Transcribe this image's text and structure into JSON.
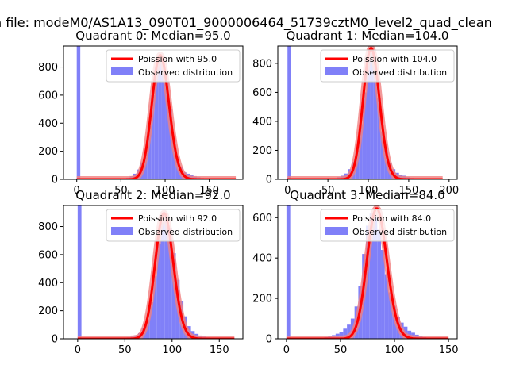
{
  "suptitle": "n file: modeM0/AS1A13_090T01_9000006464_51739cztM0_level2_quad_clean",
  "colors": {
    "observed": "#8080f8",
    "poisson": "#ff0000",
    "poisson_band": "#f08080",
    "axes": "#000000"
  },
  "chart_data": [
    {
      "type": "bar",
      "title": "Quadrant 0: Median=95.0",
      "legend": [
        "Poission with 95.0",
        "Observed distribution"
      ],
      "legend_position": "top-right",
      "xlim": [
        -15,
        188
      ],
      "ylim": [
        0,
        950
      ],
      "xticks": [
        0,
        50,
        100,
        150
      ],
      "xtick_labels": [
        "0",
        "50",
        "100",
        "150"
      ],
      "yticks": [
        0,
        200,
        400,
        600,
        800
      ],
      "ytick_labels": [
        "0",
        "200",
        "400",
        "600",
        "800"
      ],
      "median": 95,
      "bin_width": 4,
      "histogram": {
        "bins": [
          0,
          40,
          44,
          48,
          52,
          56,
          60,
          64,
          68,
          72,
          76,
          80,
          84,
          88,
          92,
          96,
          100,
          104,
          108,
          112,
          116,
          120,
          124,
          128,
          132,
          136,
          140,
          144,
          148,
          152,
          156
        ],
        "counts": [
          950,
          2,
          3,
          5,
          8,
          12,
          22,
          40,
          70,
          120,
          210,
          380,
          600,
          800,
          850,
          830,
          700,
          500,
          290,
          160,
          90,
          50,
          40,
          28,
          20,
          15,
          10,
          6,
          4,
          2,
          1
        ]
      },
      "poisson_x_range": [
        0,
        180
      ]
    },
    {
      "type": "bar",
      "title": "Quadrant 1: Median=104.0",
      "legend": [
        "Poission with 104.0",
        "Observed distribution"
      ],
      "legend_position": "top-right",
      "xlim": [
        -12,
        210
      ],
      "ylim": [
        0,
        920
      ],
      "xticks": [
        0,
        50,
        100,
        150,
        200
      ],
      "xtick_labels": [
        "0",
        "50",
        "100",
        "150",
        "200"
      ],
      "yticks": [
        0,
        200,
        400,
        600,
        800
      ],
      "ytick_labels": [
        "0",
        "200",
        "400",
        "600",
        "800"
      ],
      "median": 104,
      "bin_width": 4.5,
      "histogram": {
        "bins": [
          0,
          48,
          52.5,
          57,
          61.5,
          66,
          70.5,
          75,
          79.5,
          84,
          88.5,
          93,
          97.5,
          102,
          106.5,
          111,
          115.5,
          120,
          124.5,
          129,
          133.5,
          138,
          142.5,
          147,
          151.5,
          156,
          160.5
        ],
        "counts": [
          920,
          3,
          5,
          8,
          15,
          25,
          40,
          70,
          120,
          200,
          380,
          600,
          840,
          870,
          780,
          560,
          330,
          200,
          110,
          70,
          45,
          30,
          25,
          15,
          10,
          5,
          3
        ]
      },
      "poisson_x_range": [
        0,
        192
      ]
    },
    {
      "type": "bar",
      "title": "Quadrant 2: Median=92.0",
      "legend": [
        "Poission with 92.0",
        "Observed distribution"
      ],
      "legend_position": "top-right",
      "xlim": [
        -15,
        175
      ],
      "ylim": [
        0,
        950
      ],
      "xticks": [
        0,
        50,
        100,
        150
      ],
      "xtick_labels": [
        "0",
        "50",
        "100",
        "150"
      ],
      "yticks": [
        0,
        200,
        400,
        600,
        800
      ],
      "ytick_labels": [
        "0",
        "200",
        "400",
        "600",
        "800"
      ],
      "median": 92,
      "bin_width": 4,
      "histogram": {
        "bins": [
          0,
          44,
          48,
          52,
          56,
          60,
          64,
          68,
          72,
          76,
          80,
          84,
          88,
          92,
          96,
          100,
          104,
          108,
          112,
          116,
          120,
          124,
          128,
          132,
          136,
          140,
          144,
          148
        ],
        "counts": [
          950,
          3,
          5,
          10,
          15,
          25,
          40,
          80,
          140,
          260,
          450,
          680,
          830,
          860,
          790,
          610,
          420,
          270,
          160,
          90,
          55,
          35,
          22,
          15,
          10,
          6,
          3,
          2
        ]
      },
      "poisson_x_range": [
        0,
        166
      ]
    },
    {
      "type": "bar",
      "title": "Quadrant 3: Median=84.0",
      "legend": [
        "Poission with 84.0",
        "Observed distribution"
      ],
      "legend_position": "top-right",
      "xlim": [
        -8,
        158
      ],
      "ylim": [
        0,
        660
      ],
      "xticks": [
        0,
        50,
        100,
        150
      ],
      "xtick_labels": [
        "0",
        "50",
        "100",
        "150"
      ],
      "yticks": [
        0,
        200,
        400,
        600
      ],
      "ytick_labels": [
        "0",
        "200",
        "400",
        "600"
      ],
      "median": 84,
      "bin_width": 3.5,
      "histogram": {
        "bins": [
          0,
          28,
          31.5,
          35,
          38.5,
          42,
          45.5,
          49,
          52.5,
          56,
          59.5,
          63,
          66.5,
          70,
          73.5,
          77,
          80.5,
          84,
          87.5,
          91,
          94.5,
          98,
          101.5,
          105,
          108.5,
          112,
          115.5,
          119,
          122.5,
          126,
          129.5,
          133
        ],
        "counts": [
          660,
          3,
          5,
          8,
          12,
          18,
          25,
          35,
          50,
          70,
          100,
          160,
          260,
          420,
          560,
          620,
          600,
          540,
          440,
          320,
          230,
          160,
          110,
          80,
          60,
          40,
          30,
          20,
          12,
          8,
          5,
          3
        ]
      },
      "poisson_x_range": [
        0,
        150
      ]
    }
  ]
}
